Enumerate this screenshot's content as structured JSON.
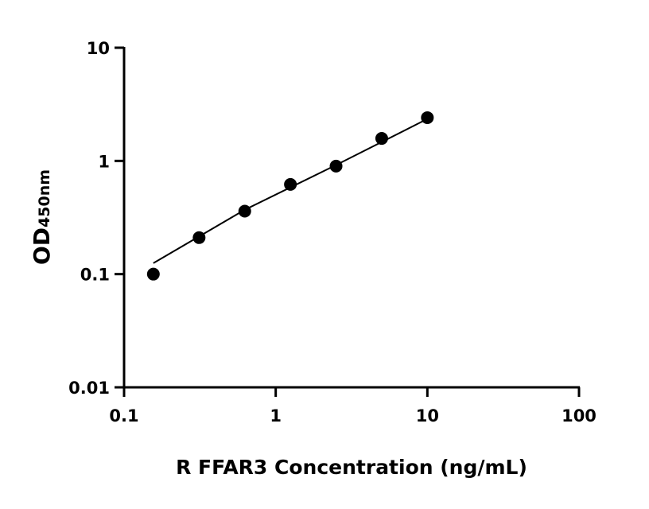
{
  "chart_data": {
    "type": "scatter",
    "xscale": "log",
    "yscale": "log",
    "xlabel": "R FFAR3 Concentration (ng/mL)",
    "ylabel_main": "OD",
    "ylabel_sub": "450nm",
    "xlim": [
      0.1,
      100
    ],
    "ylim": [
      0.01,
      10
    ],
    "xticks": [
      "0.1",
      "1",
      "10",
      "100"
    ],
    "yticks": [
      "0.01",
      "0.1",
      "1",
      "10"
    ],
    "grid": false,
    "marker_color": "#000000",
    "points": {
      "x": [
        0.156,
        0.3125,
        0.625,
        1.25,
        2.5,
        5,
        10
      ],
      "y": [
        0.1,
        0.21,
        0.36,
        0.62,
        0.9,
        1.58,
        2.41
      ]
    },
    "fit": {
      "x": [
        0.156,
        0.625,
        2.5,
        10
      ],
      "y": [
        0.125,
        0.37,
        0.92,
        2.35
      ]
    }
  }
}
